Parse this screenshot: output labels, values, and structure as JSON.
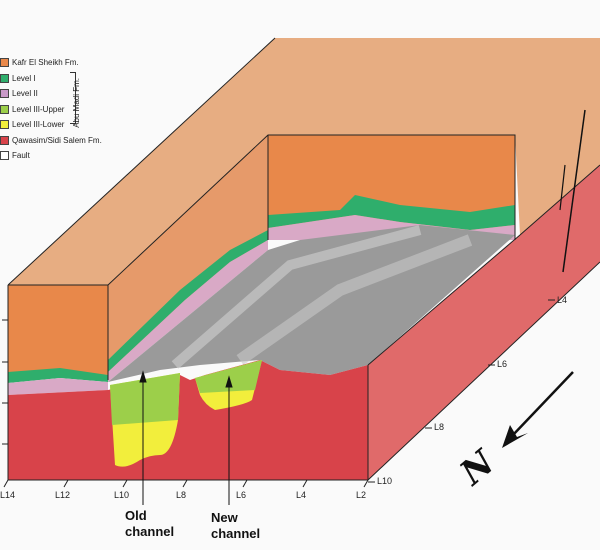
{
  "legend": {
    "items": [
      {
        "label": "Kafr El Sheikh Fm.",
        "color": "#e8884a"
      },
      {
        "label": "Level I",
        "color": "#2fae6c"
      },
      {
        "label": "Level II",
        "color": "#c99ac8"
      },
      {
        "label": "Level III-Upper",
        "color": "#9ccf4a"
      },
      {
        "label": "Level III-Lower",
        "color": "#f2ee3c"
      },
      {
        "label": "Qawasim/Sidi Salem Fm.",
        "color": "#d8434a"
      },
      {
        "label": "Fault",
        "color": "#ffffff"
      }
    ],
    "group_label": "Abu Madi Fm."
  },
  "front_ticks": [
    "L14",
    "L12",
    "L10",
    "L8",
    "L6",
    "L4",
    "L2"
  ],
  "side_ticks": [
    "L4",
    "L6",
    "L8",
    "L10"
  ],
  "annotations": {
    "old": "Old channel",
    "new": "New channel"
  },
  "north_label": "N"
}
